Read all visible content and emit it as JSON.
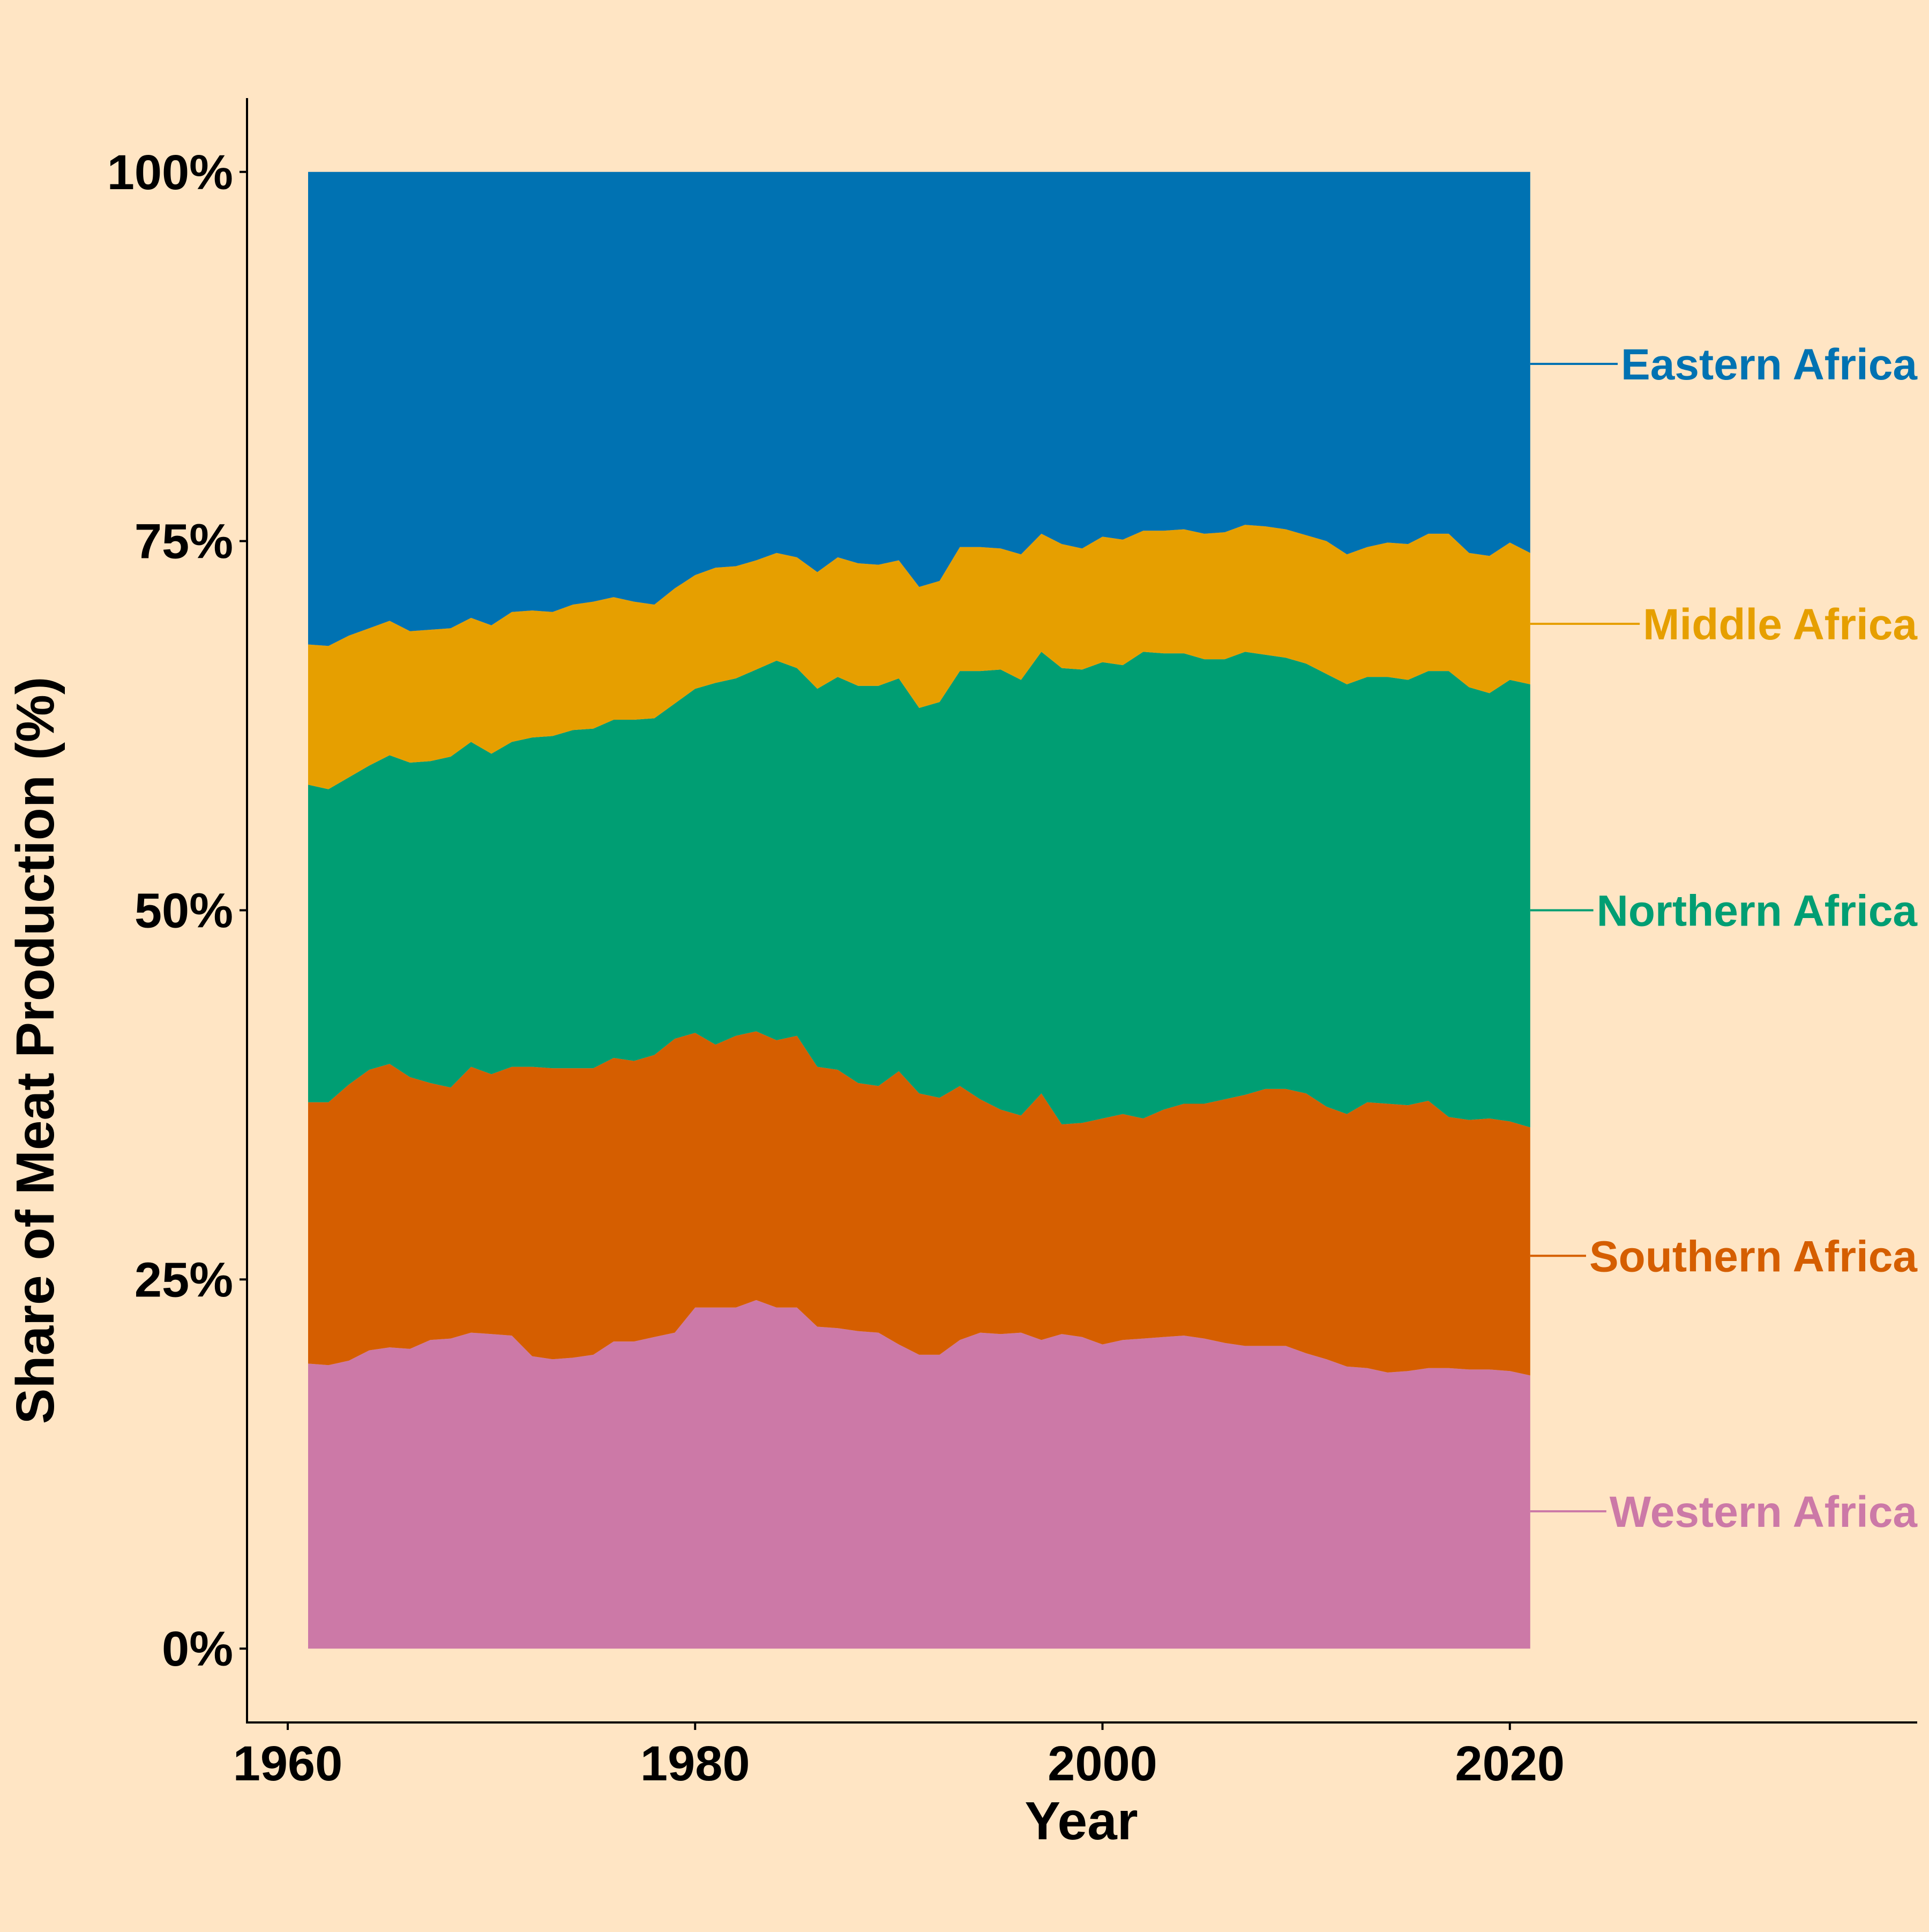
{
  "colors": {
    "background": "#FFE5C4",
    "axis": "#000000"
  },
  "chart_data": {
    "type": "area",
    "stacked": "percent",
    "title": "",
    "xlabel": "Year",
    "ylabel": "Share of Meat Production (%)",
    "xlim": [
      1958,
      2040
    ],
    "ylim": [
      -5,
      105
    ],
    "xticks": [
      1960,
      1980,
      2000,
      2020
    ],
    "xtick_labels": [
      "1960",
      "1980",
      "2000",
      "2020"
    ],
    "yticks": [
      0,
      25,
      50,
      75,
      100
    ],
    "ytick_labels": [
      "0%",
      "25%",
      "50%",
      "75%",
      "100%"
    ],
    "grid": false,
    "legend": "direct labels at right end of series",
    "boundaries_note": "cumulative upper edge of each stacked layer, in percent",
    "x": [
      1961,
      1962,
      1963,
      1964,
      1965,
      1966,
      1967,
      1968,
      1969,
      1970,
      1971,
      1972,
      1973,
      1974,
      1975,
      1976,
      1977,
      1978,
      1979,
      1980,
      1981,
      1982,
      1983,
      1984,
      1985,
      1986,
      1987,
      1988,
      1989,
      1990,
      1991,
      1992,
      1993,
      1994,
      1995,
      1996,
      1997,
      1998,
      1999,
      2000,
      2001,
      2002,
      2003,
      2004,
      2005,
      2006,
      2007,
      2008,
      2009,
      2010,
      2011,
      2012,
      2013,
      2014,
      2015,
      2016,
      2017,
      2018,
      2019,
      2020,
      2021
    ],
    "series": [
      {
        "name": "Western Africa",
        "label": "Western Africa",
        "color": "#CC79A7",
        "label_y": 9.3,
        "top": [
          19.3,
          19.2,
          19.5,
          20.2,
          20.4,
          20.3,
          20.9,
          21.0,
          21.4,
          21.3,
          21.2,
          19.8,
          19.6,
          19.7,
          19.9,
          20.8,
          20.8,
          21.1,
          21.4,
          23.1,
          23.1,
          23.1,
          23.6,
          23.1,
          23.1,
          21.8,
          21.7,
          21.5,
          21.4,
          20.6,
          19.9,
          19.9,
          20.9,
          21.4,
          21.3,
          21.4,
          20.9,
          21.3,
          21.1,
          20.6,
          20.9,
          21.0,
          21.1,
          21.2,
          21.0,
          20.7,
          20.5,
          20.5,
          20.5,
          20.0,
          19.6,
          19.1,
          19.0,
          18.7,
          18.8,
          19.0,
          19.0,
          18.9,
          18.9,
          18.8,
          18.5
        ]
      },
      {
        "name": "Southern Africa",
        "label": "Southern Africa",
        "color": "#D55E00",
        "label_y": 26.6,
        "top": [
          37.0,
          37.0,
          38.2,
          39.2,
          39.6,
          38.7,
          38.3,
          38.0,
          39.4,
          38.9,
          39.4,
          39.4,
          39.3,
          39.3,
          39.3,
          40.0,
          39.8,
          40.2,
          41.3,
          41.7,
          40.9,
          41.5,
          41.8,
          41.2,
          41.5,
          39.4,
          39.2,
          38.3,
          38.1,
          39.1,
          37.6,
          37.3,
          38.1,
          37.2,
          36.5,
          36.1,
          37.6,
          35.5,
          35.6,
          35.9,
          36.2,
          35.9,
          36.5,
          36.9,
          36.9,
          37.2,
          37.5,
          37.9,
          37.9,
          37.6,
          36.7,
          36.2,
          37.0,
          36.9,
          36.8,
          37.1,
          36.0,
          35.8,
          35.9,
          35.7,
          35.3
        ]
      },
      {
        "name": "Northern Africa",
        "label": "Northern Africa",
        "color": "#009E73",
        "label_y": 50.0,
        "top": [
          58.5,
          58.2,
          59.0,
          59.8,
          60.5,
          60.0,
          60.1,
          60.4,
          61.4,
          60.6,
          61.4,
          61.7,
          61.8,
          62.2,
          62.3,
          62.9,
          62.9,
          63.0,
          64.0,
          65.0,
          65.4,
          65.7,
          66.3,
          66.9,
          66.4,
          65.0,
          65.8,
          65.2,
          65.2,
          65.7,
          63.7,
          64.1,
          66.2,
          66.2,
          66.3,
          65.6,
          67.5,
          66.4,
          66.3,
          66.8,
          66.6,
          67.5,
          67.4,
          67.4,
          67.0,
          67.0,
          67.5,
          67.3,
          67.1,
          66.7,
          66.0,
          65.3,
          65.8,
          65.8,
          65.6,
          66.2,
          66.2,
          65.1,
          64.7,
          65.6,
          65.3
        ]
      },
      {
        "name": "Middle Africa",
        "label": "Middle Africa",
        "color": "#E69F00",
        "label_y": 69.4,
        "top": [
          68.0,
          67.9,
          68.6,
          69.1,
          69.6,
          68.9,
          69.0,
          69.1,
          69.8,
          69.3,
          70.2,
          70.3,
          70.2,
          70.7,
          70.9,
          71.2,
          70.9,
          70.7,
          71.8,
          72.7,
          73.2,
          73.3,
          73.7,
          74.2,
          73.9,
          72.9,
          73.9,
          73.5,
          73.4,
          73.7,
          71.9,
          72.3,
          74.6,
          74.6,
          74.5,
          74.1,
          75.5,
          74.8,
          74.5,
          75.3,
          75.1,
          75.7,
          75.7,
          75.8,
          75.5,
          75.6,
          76.1,
          76.0,
          75.8,
          75.4,
          75.0,
          74.1,
          74.6,
          74.9,
          74.8,
          75.5,
          75.5,
          74.2,
          74.0,
          74.9,
          74.2
        ]
      },
      {
        "name": "Eastern Africa",
        "label": "Eastern Africa",
        "color": "#0072B2",
        "label_y": 87.0,
        "top": [
          100,
          100,
          100,
          100,
          100,
          100,
          100,
          100,
          100,
          100,
          100,
          100,
          100,
          100,
          100,
          100,
          100,
          100,
          100,
          100,
          100,
          100,
          100,
          100,
          100,
          100,
          100,
          100,
          100,
          100,
          100,
          100,
          100,
          100,
          100,
          100,
          100,
          100,
          100,
          100,
          100,
          100,
          100,
          100,
          100,
          100,
          100,
          100,
          100,
          100,
          100,
          100,
          100,
          100,
          100,
          100,
          100,
          100,
          100,
          100,
          100
        ]
      }
    ]
  }
}
